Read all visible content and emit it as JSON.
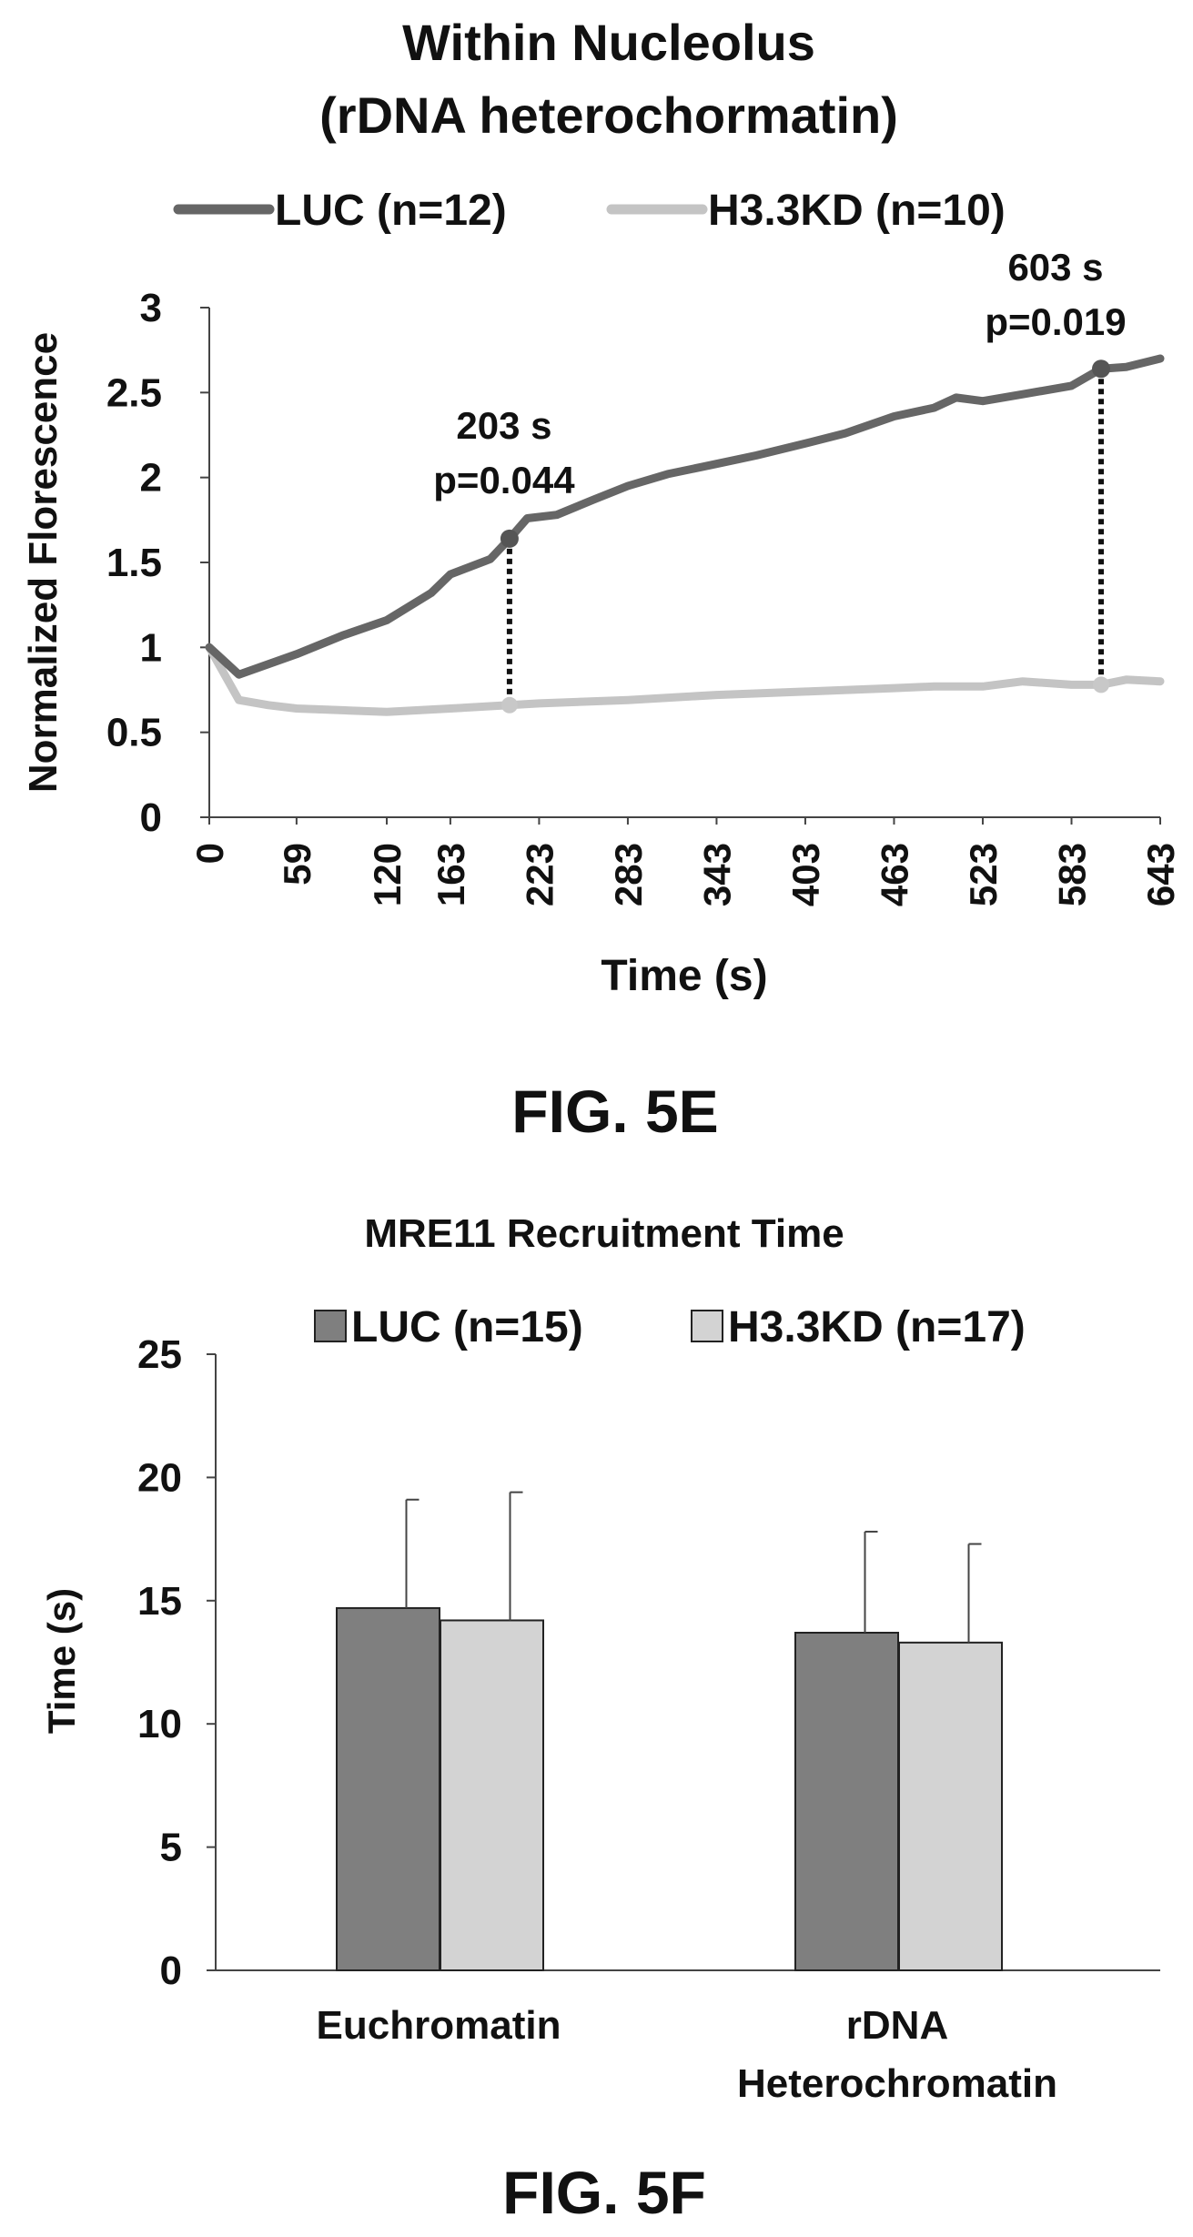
{
  "charts": [
    {
      "figure_label": "FIG. 5E",
      "chart_data": {
        "type": "line",
        "title": "Within Nucleolus",
        "subtitle": "(rDNA heterochormatin)",
        "xlabel": "Time (s)",
        "ylabel": "Normalized Florescence",
        "xlim": [
          0,
          643
        ],
        "ylim": [
          0,
          3
        ],
        "x_ticks": [
          "0",
          "59",
          "120",
          "163",
          "223",
          "283",
          "343",
          "403",
          "463",
          "523",
          "583",
          "643"
        ],
        "y_ticks": [
          "0",
          "0.5",
          "1",
          "1.5",
          "2",
          "2.5",
          "3"
        ],
        "grid": false,
        "legend_position": "top",
        "series": [
          {
            "name": "LUC (n=12)",
            "color": "#666666",
            "x": [
              0,
              20,
              59,
              90,
              120,
              150,
              163,
              190,
              203,
              215,
              235,
              260,
              283,
              310,
              343,
              370,
              403,
              430,
              463,
              490,
              505,
              523,
              550,
              583,
              603,
              620,
              643
            ],
            "y": [
              1.0,
              0.84,
              0.96,
              1.07,
              1.16,
              1.32,
              1.43,
              1.52,
              1.64,
              1.76,
              1.78,
              1.87,
              1.95,
              2.02,
              2.08,
              2.13,
              2.2,
              2.26,
              2.36,
              2.41,
              2.47,
              2.45,
              2.49,
              2.54,
              2.64,
              2.65,
              2.7
            ]
          },
          {
            "name": "H3.3KD (n=10)",
            "color": "#c4c4c4",
            "x": [
              0,
              20,
              40,
              59,
              90,
              120,
              163,
              203,
              223,
              283,
              343,
              403,
              463,
              490,
              523,
              550,
              583,
              603,
              620,
              643
            ],
            "y": [
              1.0,
              0.69,
              0.66,
              0.64,
              0.63,
              0.62,
              0.64,
              0.66,
              0.67,
              0.69,
              0.72,
              0.74,
              0.76,
              0.77,
              0.77,
              0.8,
              0.78,
              0.78,
              0.81,
              0.8
            ]
          }
        ],
        "annotations": [
          {
            "time_label": "203 s",
            "p_label": "p=0.044",
            "x": 203,
            "y_top": 1.64,
            "y_bottom": 0.66
          },
          {
            "time_label": "603 s",
            "p_label": "p=0.019",
            "x": 603,
            "y_top": 2.64,
            "y_bottom": 0.78
          }
        ]
      }
    },
    {
      "figure_label": "FIG. 5F",
      "chart_data": {
        "type": "bar",
        "title": "MRE11 Recruitment Time",
        "xlabel": "",
        "ylabel": "Time (s)",
        "ylim": [
          0,
          25
        ],
        "y_ticks": [
          "0",
          "5",
          "10",
          "15",
          "20",
          "25"
        ],
        "grid": false,
        "legend_position": "top",
        "categories": [
          [
            "Euchromatin"
          ],
          [
            "rDNA",
            "Heterochromatin"
          ]
        ],
        "series": [
          {
            "name": "LUC (n=15)",
            "color": "#7f7f7f",
            "values": [
              14.7,
              13.7
            ],
            "errors": [
              4.4,
              4.1
            ]
          },
          {
            "name": "H3.3KD (n=17)",
            "color": "#d3d3d3",
            "values": [
              14.2,
              13.3
            ],
            "errors": [
              5.2,
              4.0
            ]
          }
        ]
      }
    }
  ]
}
